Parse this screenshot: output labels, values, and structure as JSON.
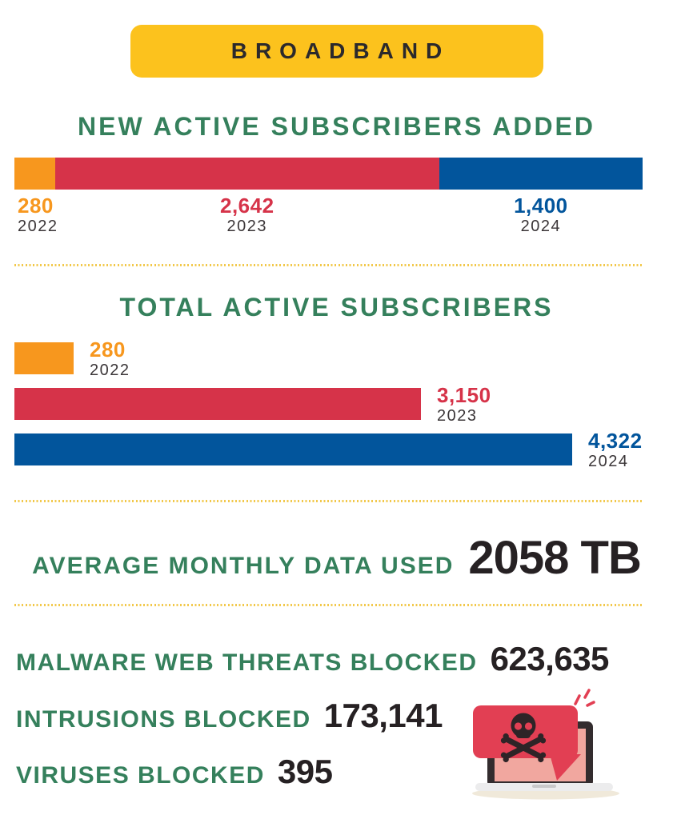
{
  "badge": {
    "label": "BROADBAND"
  },
  "average_data": {
    "label": "AVERAGE MONTHLY DATA USED",
    "value": "2058 TB"
  },
  "stats": [
    {
      "label": "MALWARE WEB THREATS BLOCKED",
      "value": "623,635"
    },
    {
      "label": "INTRUSIONS BLOCKED",
      "value": "173,141"
    },
    {
      "label": "VIRUSES BLOCKED",
      "value": "395"
    }
  ],
  "icons": {
    "illustration": "laptop-malware-alert-illustration",
    "bubble_icon": "skull-crossbones-icon"
  },
  "colors": {
    "badge_yellow": "#FCC21D",
    "heading_green": "#35805C",
    "bar_orange": "#F7971E",
    "bar_red": "#D63349",
    "bar_blue": "#02559C",
    "dark_text": "#262123",
    "year_text": "#3B3638",
    "separator_gold": "#F2C84B",
    "bubble_red": "#E23F53",
    "screen_pink": "#F1A79F",
    "laptop_dark": "#332C2E",
    "laptop_base_gray": "#ECECED",
    "shadow_beige": "#F0E9DA"
  },
  "chart_data": [
    {
      "type": "bar",
      "layout": "horizontal-stacked",
      "title": "NEW ACTIVE SUBSCRIBERS ADDED",
      "categories": [
        "2022",
        "2023",
        "2024"
      ],
      "values": [
        280,
        2642,
        1400
      ],
      "value_labels": [
        "280",
        "2,642",
        "1,400"
      ],
      "colors": [
        "#F7971E",
        "#D63349",
        "#02559C"
      ],
      "total": 4322,
      "legend": "none",
      "grid": false
    },
    {
      "type": "bar",
      "layout": "horizontal",
      "title": "TOTAL ACTIVE SUBSCRIBERS",
      "categories": [
        "2022",
        "2023",
        "2024"
      ],
      "values": [
        280,
        3150,
        4322
      ],
      "value_labels": [
        "280",
        "3,150",
        "4,322"
      ],
      "colors": [
        "#F7971E",
        "#D63349",
        "#02559C"
      ],
      "xlim": [
        0,
        4322
      ],
      "legend": "none",
      "grid": false
    }
  ]
}
